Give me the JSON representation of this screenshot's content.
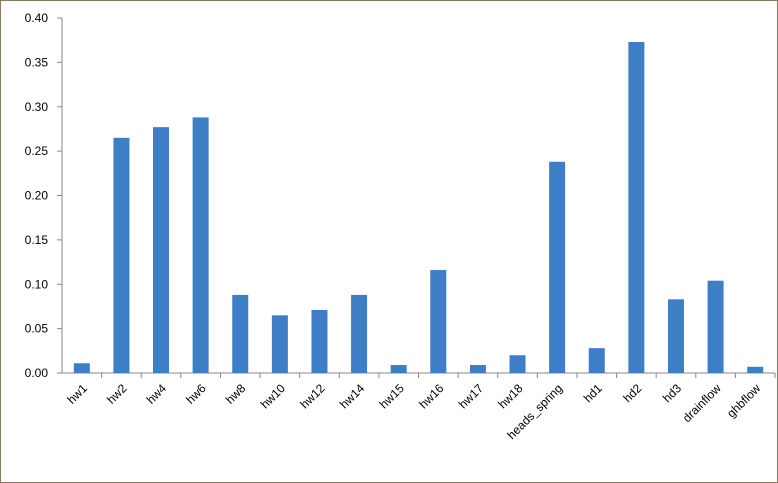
{
  "chart_data": {
    "type": "bar",
    "categories": [
      "hw1",
      "hw2",
      "hw4",
      "hw6",
      "hw8",
      "hw10",
      "hw12",
      "hw14",
      "hw15",
      "hw16",
      "hw17",
      "hw18",
      "heads_spring",
      "hd1",
      "hd2",
      "hd3",
      "drainflow",
      "ghbflow"
    ],
    "values": [
      0.011,
      0.265,
      0.277,
      0.288,
      0.088,
      0.065,
      0.071,
      0.088,
      0.009,
      0.116,
      0.009,
      0.02,
      0.238,
      0.028,
      0.373,
      0.083,
      0.104,
      0.007
    ],
    "color": "#3d7ec6",
    "ylim": [
      0,
      0.4
    ],
    "yticks": [
      {
        "value": 0,
        "label": "0.00"
      },
      0.05,
      {
        "value": 0.1,
        "label": "0.10"
      },
      0.15,
      {
        "value": 0.2,
        "label": "0.20"
      },
      0.25,
      {
        "value": 0.3,
        "label": "0.30"
      },
      0.35,
      {
        "value": 0.4,
        "label": "0.40"
      }
    ],
    "grid": false
  }
}
